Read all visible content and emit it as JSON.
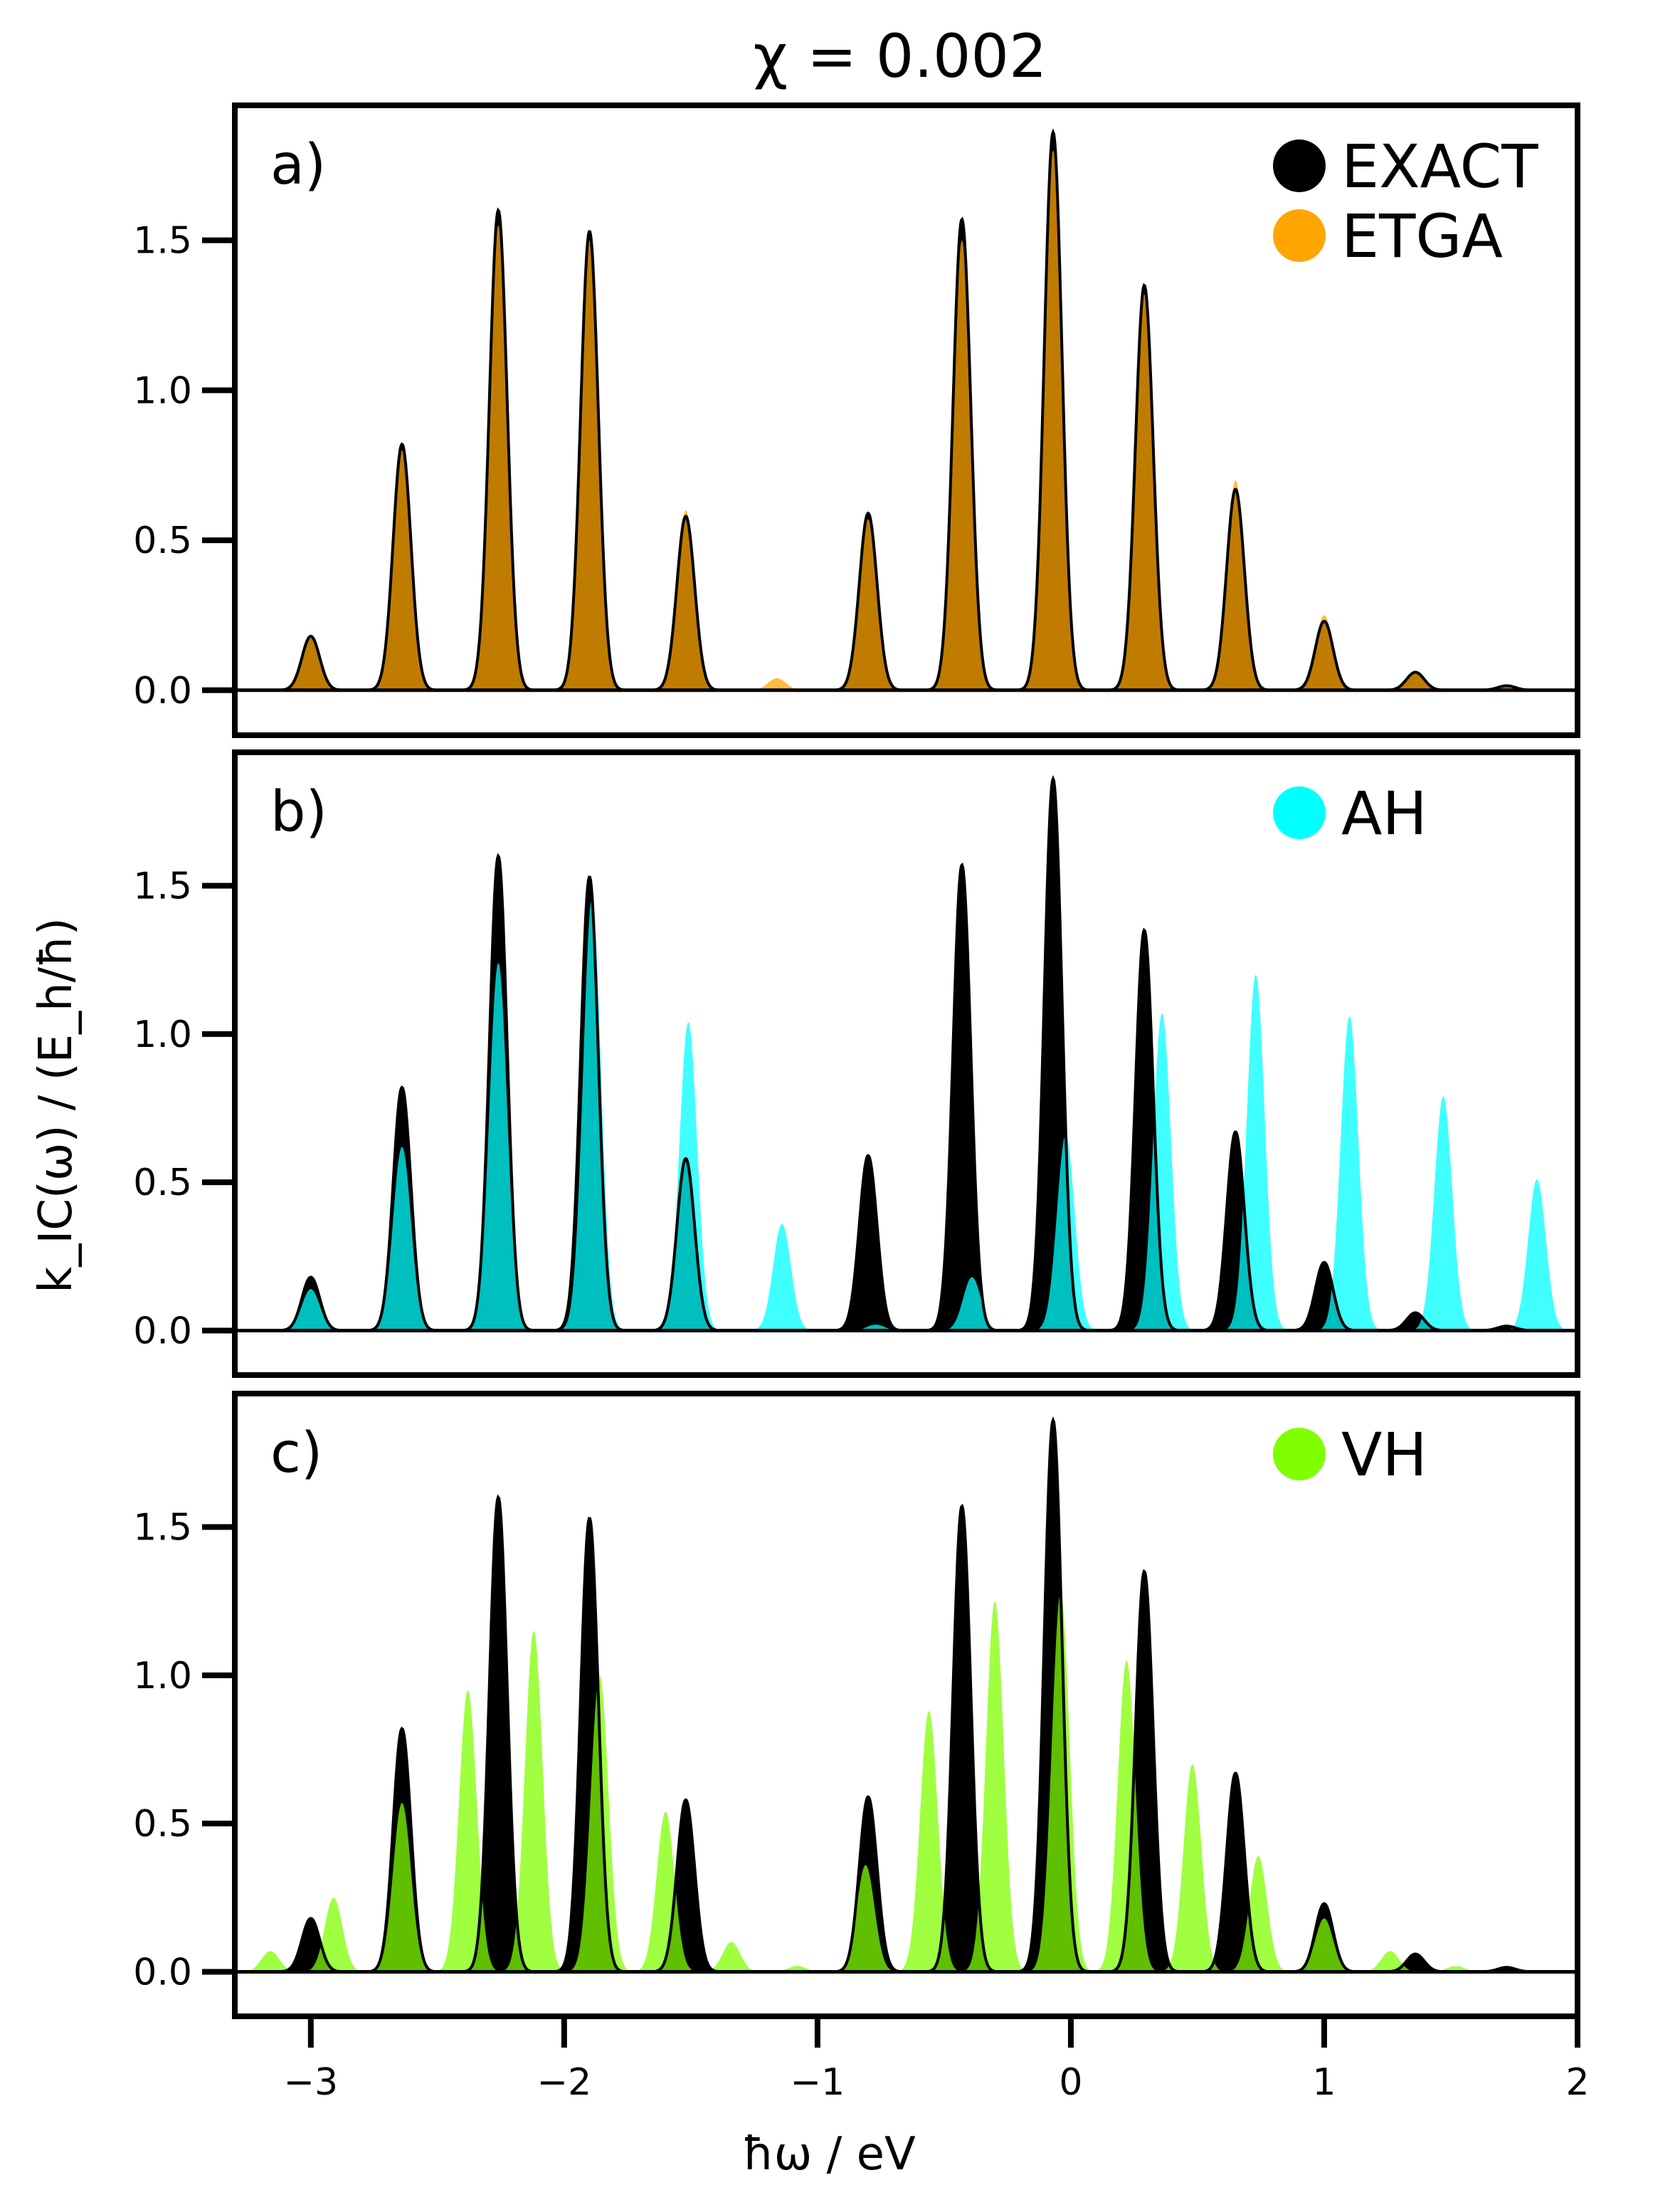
{
  "title": "χ = 0.002",
  "chart_data": {
    "type": "area",
    "title": "χ = 0.002",
    "xlabel": "ħω / eV",
    "ylabel": "k_IC(ω) / (E_h/ħ)",
    "xlim": [
      -3.3,
      2.0
    ],
    "ylim": [
      -0.15,
      1.95
    ],
    "x_ticks": [
      -3,
      -2,
      -1,
      0,
      1,
      2
    ],
    "x_tick_labels": [
      "−3",
      "−2",
      "−1",
      "0",
      "1",
      "2"
    ],
    "y_ticks": [
      0.0,
      0.5,
      1.0,
      1.5
    ],
    "y_tick_labels": [
      "0.0",
      "0.5",
      "1.0",
      "1.5"
    ],
    "peak_width_eV": 0.035,
    "exact_series": {
      "name": "EXACT",
      "color": "#000000",
      "peaks": [
        [
          -3.0,
          0.18
        ],
        [
          -2.64,
          0.82
        ],
        [
          -2.26,
          1.6
        ],
        [
          -1.9,
          1.53
        ],
        [
          -1.52,
          0.58
        ],
        [
          -0.8,
          0.59
        ],
        [
          -0.43,
          1.57
        ],
        [
          -0.07,
          1.86
        ],
        [
          0.29,
          1.35
        ],
        [
          0.65,
          0.67
        ],
        [
          1.0,
          0.23
        ],
        [
          1.36,
          0.06
        ],
        [
          1.72,
          0.015
        ]
      ]
    },
    "panels": [
      {
        "label": "a)",
        "approx_series": {
          "name": "ETGA",
          "color": "#ffa500",
          "peaks": [
            [
              -3.0,
              0.18
            ],
            [
              -2.64,
              0.8
            ],
            [
              -2.26,
              1.55
            ],
            [
              -1.9,
              1.5
            ],
            [
              -1.52,
              0.6
            ],
            [
              -1.16,
              0.04
            ],
            [
              -0.8,
              0.57
            ],
            [
              -0.43,
              1.5
            ],
            [
              -0.07,
              1.8
            ],
            [
              0.29,
              1.32
            ],
            [
              0.65,
              0.7
            ],
            [
              1.0,
              0.25
            ],
            [
              1.36,
              0.06
            ],
            [
              1.72,
              0.015
            ]
          ]
        },
        "legend": [
          "EXACT",
          "ETGA"
        ]
      },
      {
        "label": "b)",
        "approx_series": {
          "name": "AH",
          "color": "#00ffff",
          "peaks": [
            [
              -3.0,
              0.14
            ],
            [
              -2.64,
              0.62
            ],
            [
              -2.26,
              1.24
            ],
            [
              -1.89,
              1.46
            ],
            [
              -1.51,
              1.04
            ],
            [
              -1.14,
              0.36
            ],
            [
              -0.77,
              0.02
            ],
            [
              -0.39,
              0.18
            ],
            [
              -0.02,
              0.66
            ],
            [
              0.36,
              1.07
            ],
            [
              0.73,
              1.2
            ],
            [
              1.1,
              1.06
            ],
            [
              1.47,
              0.79
            ],
            [
              1.84,
              0.51
            ]
          ]
        },
        "legend": [
          "AH"
        ]
      },
      {
        "label": "c)",
        "approx_series": {
          "name": "VH",
          "color": "#7fff00",
          "peaks": [
            [
              -3.16,
              0.07
            ],
            [
              -2.91,
              0.25
            ],
            [
              -2.64,
              0.57
            ],
            [
              -2.38,
              0.95
            ],
            [
              -2.12,
              1.15
            ],
            [
              -1.86,
              1.0
            ],
            [
              -1.6,
              0.54
            ],
            [
              -1.34,
              0.1
            ],
            [
              -1.08,
              0.02
            ],
            [
              -0.81,
              0.36
            ],
            [
              -0.56,
              0.88
            ],
            [
              -0.3,
              1.25
            ],
            [
              -0.04,
              1.28
            ],
            [
              0.22,
              1.05
            ],
            [
              0.48,
              0.7
            ],
            [
              0.74,
              0.39
            ],
            [
              1.0,
              0.18
            ],
            [
              1.26,
              0.07
            ],
            [
              1.52,
              0.02
            ]
          ]
        },
        "legend": [
          "VH"
        ]
      }
    ]
  }
}
